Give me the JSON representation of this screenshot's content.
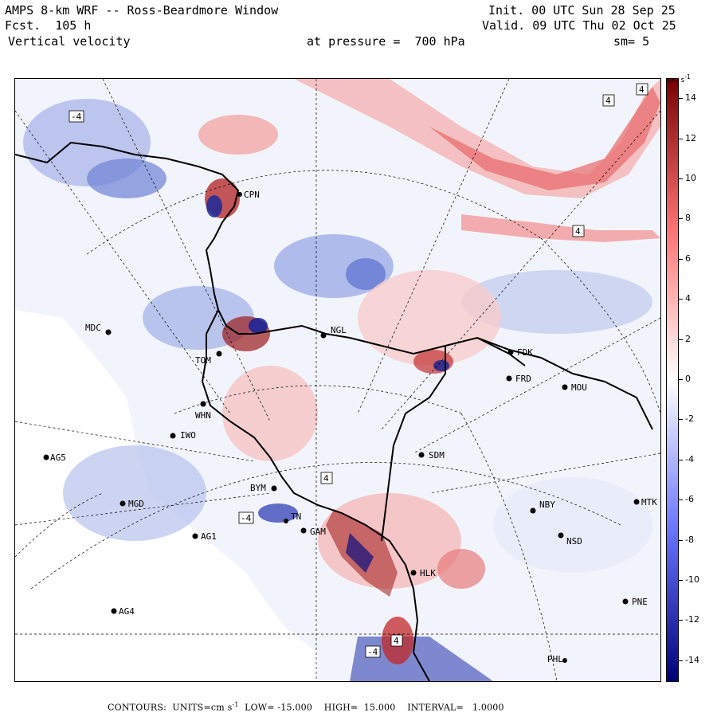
{
  "header": {
    "model": "AMPS 8-km WRF -- Ross-Beardmore Window",
    "forecast": "Fcst.  105 h",
    "variable": "Vertical velocity",
    "init": "Init. 00 UTC Sun 28 Sep 25",
    "valid": "Valid. 09 UTC Thu 02 Oct 25",
    "pressure": "at pressure =  700 hPa",
    "smoothing": "sm= 5"
  },
  "colorbar": {
    "unit": "cm s",
    "unit_sup": "-1",
    "ticks": [
      "14",
      "12",
      "10",
      "8",
      "6",
      "4",
      "2",
      "0",
      "-2",
      "-4",
      "-6",
      "-8",
      "-10",
      "-12",
      "-14"
    ],
    "tick_values": [
      14,
      12,
      10,
      8,
      6,
      4,
      2,
      0,
      -2,
      -4,
      -6,
      -8,
      -10,
      -12,
      -14
    ],
    "range": [
      -15,
      15
    ]
  },
  "footer": {
    "contours_label": "CONTOURS:  UNITS=cm s",
    "unit_sup": "-1",
    "low_label": "  LOW= -15.000",
    "high_label": "    HIGH=  15.000",
    "interval_label": "    INTERVAL=   1.0000"
  },
  "stations": [
    {
      "id": "MDC"
    },
    {
      "id": "NGL"
    },
    {
      "id": "FDK"
    },
    {
      "id": "FRD"
    },
    {
      "id": "MOU"
    },
    {
      "id": "TOM"
    },
    {
      "id": "WHN"
    },
    {
      "id": "IWO"
    },
    {
      "id": "AG5"
    },
    {
      "id": "SDM"
    },
    {
      "id": "MGD"
    },
    {
      "id": "BYM"
    },
    {
      "id": "NBY"
    },
    {
      "id": "MTK"
    },
    {
      "id": "AG1"
    },
    {
      "id": "GAM"
    },
    {
      "id": "TN"
    },
    {
      "id": "NSD"
    },
    {
      "id": "HLK"
    },
    {
      "id": "AG4"
    },
    {
      "id": "PNE"
    },
    {
      "id": "PHL"
    },
    {
      "id": "CPN"
    }
  ],
  "contour_labels": [
    {
      "text": "-4"
    },
    {
      "text": "4"
    },
    {
      "text": "4"
    },
    {
      "text": "4"
    },
    {
      "text": "-4"
    },
    {
      "text": "-4"
    },
    {
      "text": "4"
    },
    {
      "text": "4"
    }
  ]
}
